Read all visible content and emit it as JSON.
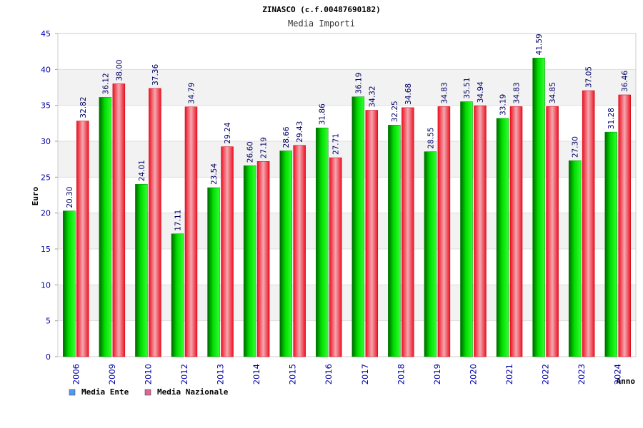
{
  "chart_data": {
    "type": "bar",
    "title": "ZINASCO (c.f.00487690182)",
    "subtitle": "Media Importi",
    "ylabel": "Euro",
    "xlabel": "Anno",
    "ylim": [
      0,
      45
    ],
    "yticks": [
      0,
      5,
      10,
      15,
      20,
      25,
      30,
      35,
      40,
      45
    ],
    "grid": true,
    "legend_position": "bottom-left",
    "categories": [
      "2006",
      "2009",
      "2010",
      "2012",
      "2013",
      "2014",
      "2015",
      "2016",
      "2017",
      "2018",
      "2019",
      "2020",
      "2021",
      "2022",
      "2023",
      "2024"
    ],
    "series": [
      {
        "name": "Media Ente",
        "color": "#00cc00",
        "legend_color": "#5599ee",
        "values": [
          20.3,
          36.12,
          24.01,
          17.11,
          23.54,
          26.6,
          28.66,
          31.86,
          36.19,
          32.25,
          28.55,
          35.51,
          33.19,
          41.59,
          27.3,
          31.28
        ]
      },
      {
        "name": "Media Nazionale",
        "color": "#ee2233",
        "legend_color": "#dd6699",
        "values": [
          32.82,
          38.0,
          37.36,
          34.79,
          29.24,
          27.19,
          29.43,
          27.71,
          34.32,
          34.68,
          34.83,
          34.94,
          34.83,
          34.85,
          37.05,
          36.46
        ]
      }
    ],
    "value_labels": [
      [
        "20.30",
        "36.12",
        "24.01",
        "17.11",
        "23.54",
        "26.60",
        "28.66",
        "31.86",
        "36.19",
        "32.25",
        "28.55",
        "35.51",
        "33.19",
        "41.59",
        "27.30",
        "31.28"
      ],
      [
        "32.82",
        "38.00",
        "37.36",
        "34.79",
        "29.24",
        "27.19",
        "29.43",
        "27.71",
        "34.32",
        "34.68",
        "34.83",
        "34.94",
        "34.83",
        "34.85",
        "37.05",
        "36.46"
      ]
    ],
    "colors": {
      "axis_text": "#0000aa",
      "label_text": "#000066",
      "band": "#f2f2f2",
      "grid": "#dddddd"
    }
  }
}
